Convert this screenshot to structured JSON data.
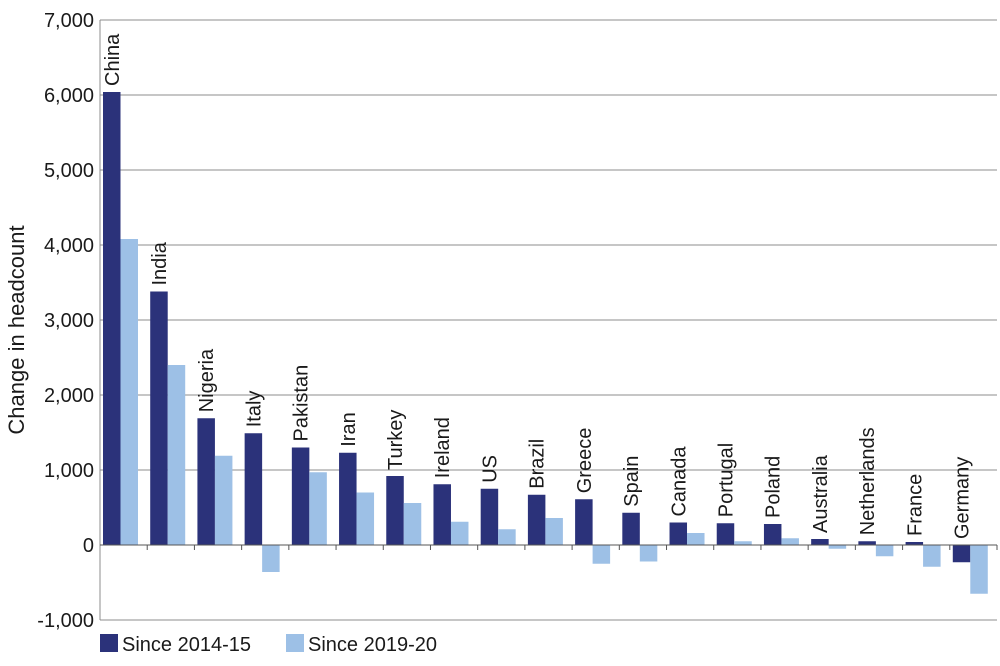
{
  "chart_data": {
    "type": "bar",
    "title": "",
    "xlabel": "",
    "ylabel": "Change in headcount",
    "ylim": [
      -1000,
      7000
    ],
    "yticks": [
      -1000,
      0,
      1000,
      2000,
      3000,
      4000,
      5000,
      6000,
      7000
    ],
    "ytick_labels": [
      "-1,000",
      "0",
      "1,000",
      "2,000",
      "3,000",
      "4,000",
      "5,000",
      "6,000",
      "7,000"
    ],
    "grid": true,
    "legend_position": "bottom-left",
    "categories": [
      "China",
      "India",
      "Nigeria",
      "Italy",
      "Pakistan",
      "Iran",
      "Turkey",
      "Ireland",
      "US",
      "Brazil",
      "Greece",
      "Spain",
      "Canada",
      "Portugal",
      "Poland",
      "Australia",
      "Netherlands",
      "France",
      "Germany"
    ],
    "series": [
      {
        "name": "Since 2014-15",
        "color": "#2b327a",
        "values": [
          6040,
          3380,
          1690,
          1490,
          1300,
          1230,
          920,
          810,
          750,
          670,
          610,
          430,
          300,
          290,
          280,
          80,
          50,
          40,
          -230
        ]
      },
      {
        "name": "Since 2019-20",
        "color": "#9dc0e6",
        "values": [
          4080,
          2400,
          1190,
          -360,
          970,
          700,
          560,
          310,
          210,
          360,
          -250,
          -220,
          160,
          50,
          90,
          -50,
          -150,
          -290,
          -650
        ]
      }
    ]
  }
}
